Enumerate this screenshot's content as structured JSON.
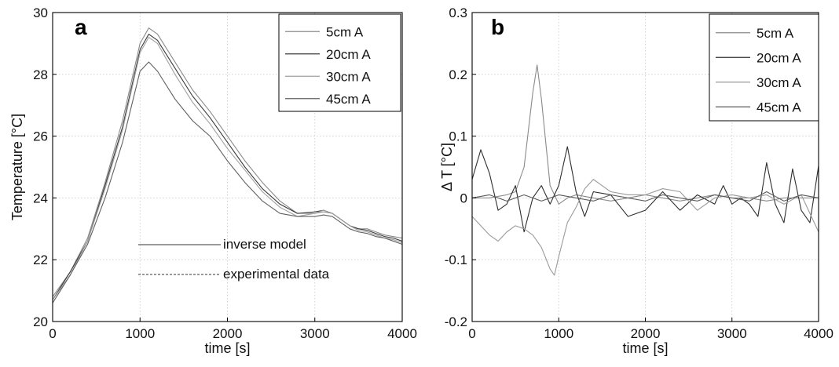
{
  "chart_data": [
    {
      "panel_label": "a",
      "type": "line",
      "xlabel": "time [s]",
      "ylabel": "Temperature [°C]",
      "xlim": [
        0,
        4000
      ],
      "ylim": [
        20,
        30
      ],
      "xticks": [
        0,
        1000,
        2000,
        3000,
        4000
      ],
      "yticks": [
        20,
        22,
        24,
        26,
        28,
        30
      ],
      "grid": true,
      "legend": {
        "placement": "top-right",
        "entries": [
          "5cm A",
          "20cm A",
          "30cm A",
          "45cm A"
        ]
      },
      "annotations": [
        {
          "text": "inverse model",
          "style": "solid"
        },
        {
          "text": "experimental data",
          "style": "dashed"
        }
      ],
      "series": [
        {
          "name": "5cm A",
          "color": "#8a8a8a",
          "x": [
            0,
            200,
            400,
            600,
            800,
            1000,
            1100,
            1200,
            1400,
            1600,
            1800,
            2000,
            2200,
            2400,
            2600,
            2800,
            3000,
            3100,
            3200,
            3300,
            3400,
            3500,
            3600,
            3700,
            3800,
            3900,
            4000
          ],
          "y": [
            20.8,
            21.6,
            22.7,
            24.5,
            26.5,
            29.0,
            29.5,
            29.3,
            28.4,
            27.5,
            26.8,
            26.0,
            25.2,
            24.5,
            23.9,
            23.5,
            23.5,
            23.55,
            23.5,
            23.3,
            23.1,
            23.0,
            23.0,
            22.9,
            22.8,
            22.75,
            22.7
          ]
        },
        {
          "name": "20cm A",
          "color": "#3a3a3a",
          "x": [
            0,
            200,
            400,
            600,
            800,
            1000,
            1100,
            1200,
            1400,
            1600,
            1800,
            2000,
            2200,
            2400,
            2600,
            2800,
            3000,
            3100,
            3200,
            3300,
            3400,
            3500,
            3600,
            3700,
            3800,
            3900,
            4000
          ],
          "y": [
            20.7,
            21.6,
            22.6,
            24.4,
            26.3,
            28.8,
            29.3,
            29.1,
            28.2,
            27.3,
            26.6,
            25.8,
            25.0,
            24.3,
            23.8,
            23.5,
            23.55,
            23.6,
            23.5,
            23.3,
            23.1,
            23.0,
            22.95,
            22.85,
            22.75,
            22.7,
            22.6
          ]
        },
        {
          "name": "30cm A",
          "color": "#a0a0a0",
          "x": [
            0,
            200,
            400,
            600,
            800,
            1000,
            1100,
            1200,
            1400,
            1600,
            1800,
            2000,
            2200,
            2400,
            2600,
            2800,
            3000,
            3100,
            3200,
            3300,
            3400,
            3500,
            3600,
            3700,
            3800,
            3900,
            4000
          ],
          "y": [
            20.7,
            21.5,
            22.6,
            24.3,
            26.2,
            28.7,
            29.2,
            29.0,
            28.0,
            27.1,
            26.4,
            25.6,
            24.9,
            24.2,
            23.7,
            23.4,
            23.5,
            23.6,
            23.5,
            23.3,
            23.1,
            22.95,
            22.9,
            22.8,
            22.7,
            22.65,
            22.55
          ]
        },
        {
          "name": "45cm A",
          "color": "#606060",
          "x": [
            0,
            200,
            400,
            600,
            800,
            1000,
            1100,
            1200,
            1400,
            1600,
            1800,
            2000,
            2200,
            2400,
            2600,
            2800,
            3000,
            3100,
            3200,
            3300,
            3400,
            3500,
            3600,
            3700,
            3800,
            3900,
            4000
          ],
          "y": [
            20.6,
            21.5,
            22.5,
            24.0,
            25.8,
            28.1,
            28.4,
            28.1,
            27.2,
            26.5,
            26.0,
            25.2,
            24.5,
            23.9,
            23.5,
            23.4,
            23.4,
            23.45,
            23.4,
            23.2,
            23.0,
            22.9,
            22.85,
            22.75,
            22.7,
            22.6,
            22.5
          ]
        }
      ]
    },
    {
      "panel_label": "b",
      "type": "line",
      "xlabel": "time [s]",
      "ylabel": "Δ T [°C]",
      "xlim": [
        0,
        4000
      ],
      "ylim": [
        -0.2,
        0.3
      ],
      "xticks": [
        0,
        1000,
        2000,
        3000,
        4000
      ],
      "yticks": [
        -0.2,
        -0.1,
        0,
        0.1,
        0.2,
        0.3
      ],
      "grid": true,
      "legend": {
        "placement": "top-right",
        "entries": [
          "5cm A",
          "20cm A",
          "30cm A",
          "45cm A"
        ]
      },
      "series": [
        {
          "name": "5cm A",
          "color": "#8a8a8a",
          "x": [
            0,
            200,
            400,
            500,
            600,
            700,
            750,
            800,
            900,
            1000,
            1100,
            1200,
            1400,
            1600,
            1800,
            2000,
            2200,
            2400,
            2600,
            2800,
            3000,
            3200,
            3400,
            3600,
            3800,
            4000
          ],
          "y": [
            0,
            0,
            0.005,
            0.01,
            0.05,
            0.17,
            0.215,
            0.16,
            0.02,
            -0.01,
            0.0,
            0.005,
            0.0,
            -0.005,
            0.0,
            0.005,
            0.0,
            -0.005,
            0.0,
            0.005,
            0.0,
            0.0,
            -0.005,
            0.0,
            0.0,
            0.0
          ]
        },
        {
          "name": "20cm A",
          "color": "#2e2e2e",
          "x": [
            0,
            100,
            200,
            300,
            400,
            500,
            600,
            700,
            800,
            900,
            1000,
            1100,
            1200,
            1300,
            1400,
            1600,
            1800,
            2000,
            2200,
            2400,
            2600,
            2800,
            2900,
            3000,
            3100,
            3200,
            3300,
            3400,
            3500,
            3600,
            3700,
            3800,
            3900,
            4000
          ],
          "y": [
            0.03,
            0.078,
            0.04,
            -0.02,
            -0.01,
            0.02,
            -0.055,
            0.0,
            0.02,
            -0.01,
            0.02,
            0.083,
            0.01,
            -0.03,
            0.01,
            0.005,
            -0.03,
            -0.02,
            0.01,
            -0.02,
            0.005,
            -0.01,
            0.02,
            -0.01,
            0.0,
            -0.01,
            -0.03,
            0.057,
            -0.01,
            -0.04,
            0.047,
            -0.02,
            -0.04,
            0.052
          ]
        },
        {
          "name": "30cm A",
          "color": "#9a9a9a",
          "x": [
            0,
            100,
            200,
            300,
            400,
            500,
            600,
            700,
            800,
            900,
            950,
            1000,
            1100,
            1200,
            1300,
            1400,
            1500,
            1600,
            1800,
            2000,
            2200,
            2400,
            2600,
            2800,
            3000,
            3200,
            3400,
            3600,
            3800,
            4000
          ],
          "y": [
            -0.03,
            -0.045,
            -0.06,
            -0.07,
            -0.055,
            -0.045,
            -0.05,
            -0.06,
            -0.08,
            -0.115,
            -0.125,
            -0.095,
            -0.04,
            -0.015,
            0.015,
            0.03,
            0.02,
            0.01,
            0.005,
            0.005,
            0.015,
            0.01,
            -0.02,
            0.0,
            0.005,
            0.0,
            0.005,
            -0.01,
            0.005,
            -0.055
          ]
        },
        {
          "name": "45cm A",
          "color": "#5c5c5c",
          "x": [
            0,
            200,
            400,
            600,
            800,
            1000,
            1200,
            1400,
            1600,
            1800,
            2000,
            2200,
            2400,
            2600,
            2800,
            3000,
            3200,
            3400,
            3600,
            3800,
            4000
          ],
          "y": [
            0,
            0.005,
            -0.005,
            0.005,
            -0.005,
            0.005,
            0.0,
            -0.005,
            0.005,
            0.0,
            -0.005,
            0.005,
            0.0,
            -0.005,
            0.005,
            0.0,
            -0.005,
            0.01,
            -0.005,
            0.005,
            0.0
          ]
        }
      ]
    }
  ]
}
